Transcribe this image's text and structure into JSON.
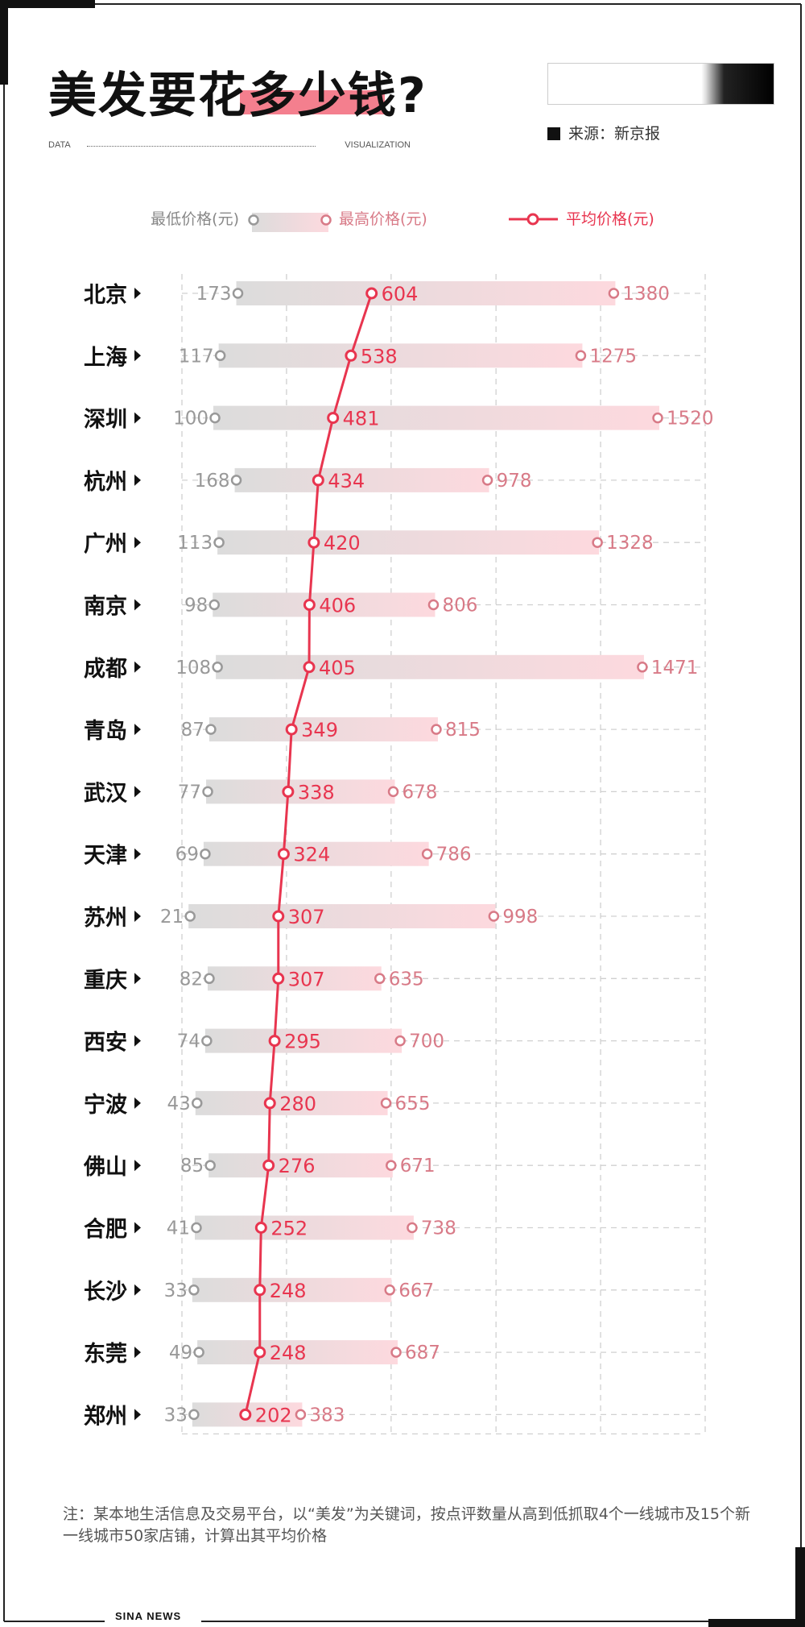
{
  "header": {
    "title": "美发要花多少钱?",
    "data_label": "DATA",
    "visualization_label": "VISUALIZATION",
    "source": "来源：新京报"
  },
  "legend": {
    "min_label": "最低价格(元)",
    "max_label": "最高价格(元)",
    "avg_label": "平均价格(元)"
  },
  "colors": {
    "accent": "#e8354f",
    "avg_text": "#e8354f",
    "max_text": "#d87a87",
    "min_text": "#999999",
    "bar_start": "#dcdcdc",
    "bar_end": "#fdd9de",
    "grid": "#d0d0d0"
  },
  "chart_data": {
    "type": "range-bar-with-line",
    "categories": [
      "北京",
      "上海",
      "深圳",
      "杭州",
      "广州",
      "南京",
      "成都",
      "青岛",
      "武汉",
      "天津",
      "苏州",
      "重庆",
      "西安",
      "宁波",
      "佛山",
      "合肥",
      "长沙",
      "东莞",
      "郑州"
    ],
    "series": [
      {
        "name": "最低价格(元)",
        "values": [
          173,
          117,
          100,
          168,
          113,
          98,
          108,
          87,
          77,
          69,
          21,
          82,
          74,
          43,
          85,
          41,
          33,
          49,
          33
        ]
      },
      {
        "name": "最高价格(元)",
        "values": [
          1380,
          1275,
          1520,
          978,
          1328,
          806,
          1471,
          815,
          678,
          786,
          998,
          635,
          700,
          655,
          671,
          738,
          667,
          687,
          383
        ]
      },
      {
        "name": "平均价格(元)",
        "values": [
          604,
          538,
          481,
          434,
          420,
          406,
          405,
          349,
          338,
          324,
          307,
          307,
          295,
          280,
          276,
          252,
          248,
          248,
          202
        ]
      }
    ],
    "x_ticks": [
      "0",
      "333",
      "666",
      "1000",
      "1333",
      "1666"
    ],
    "xlim": [
      0,
      1666
    ],
    "grid": true,
    "legend_position": "top"
  },
  "note": "注：某本地生活信息及交易平台，以“美发”为关键词，按点评数量从高到低抓取4个一线城市及15个新一线城市50家店铺，计算出其平均价格",
  "footer": "SINA NEWS"
}
